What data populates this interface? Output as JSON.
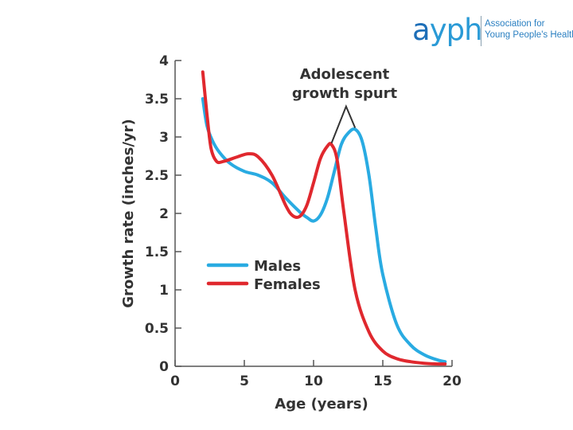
{
  "logo": {
    "mark_a": "a",
    "mark_rest": "yph",
    "line1": "Association for",
    "line2": "Young People's Health"
  },
  "chart_data": {
    "type": "line",
    "xlabel": "Age (years)",
    "ylabel": "Growth rate (inches/yr)",
    "xlim": [
      0,
      20
    ],
    "ylim": [
      0,
      4
    ],
    "x_ticks": [
      "0",
      "5",
      "10",
      "15",
      "20"
    ],
    "y_ticks": [
      "0",
      "0.5",
      "1",
      "1.5",
      "2",
      "2.5",
      "3",
      "3.5",
      "4"
    ],
    "grid": false,
    "legend_position": "center-left",
    "annotation": [
      "Adolescent",
      "growth spurt"
    ],
    "series": [
      {
        "name": "Males",
        "color": "#29abe2",
        "x": [
          2,
          2.3,
          2.7,
          3.2,
          4,
          5,
          6,
          7,
          8,
          9,
          9.5,
          10,
          10.5,
          11,
          11.5,
          12,
          12.5,
          13,
          13.5,
          14,
          14.5,
          15,
          16,
          17,
          18,
          19,
          19.5
        ],
        "y": [
          3.5,
          3.15,
          2.95,
          2.8,
          2.65,
          2.55,
          2.5,
          2.4,
          2.2,
          2.02,
          1.95,
          1.9,
          1.98,
          2.2,
          2.55,
          2.9,
          3.05,
          3.1,
          2.95,
          2.5,
          1.8,
          1.2,
          0.55,
          0.28,
          0.15,
          0.08,
          0.06
        ]
      },
      {
        "name": "Females",
        "color": "#e0282e",
        "x": [
          2,
          2.3,
          2.6,
          3,
          3.5,
          4.5,
          5.3,
          6,
          7,
          8,
          8.5,
          9,
          9.5,
          10,
          10.5,
          11,
          11.3,
          11.7,
          12.2,
          13,
          14,
          15,
          16,
          17,
          18,
          19,
          19.5
        ],
        "y": [
          3.85,
          3.3,
          2.85,
          2.68,
          2.68,
          2.74,
          2.78,
          2.74,
          2.5,
          2.1,
          1.97,
          1.96,
          2.1,
          2.4,
          2.72,
          2.88,
          2.9,
          2.7,
          2.0,
          1.0,
          0.45,
          0.2,
          0.1,
          0.06,
          0.04,
          0.03,
          0.03
        ]
      }
    ]
  }
}
